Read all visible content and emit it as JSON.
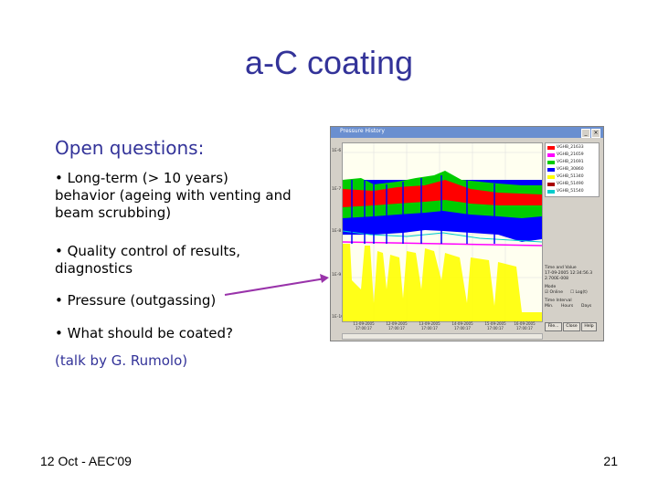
{
  "slide": {
    "title": "a-C coating",
    "heading": "Open questions:",
    "bullets": [
      "• Long-term (> 10 years) behavior (ageing with venting and beam scrubbing)",
      "• Quality control of results, diagnostics",
      "• Pressure (outgassing)",
      "• What should be coated?"
    ],
    "talk": "(talk by G. Rumolo)",
    "footer_left": "12 Oct - AEC'09",
    "footer_right": "21"
  },
  "screenshot": {
    "window_title": "Pressure History",
    "legend": [
      {
        "label": "VGHB_21633",
        "color": "#ff0000"
      },
      {
        "label": "VGHB_21659",
        "color": "#ff00ff"
      },
      {
        "label": "VGHB_21691",
        "color": "#00cc00"
      },
      {
        "label": "VGHB_30860",
        "color": "#0000ff"
      },
      {
        "label": "VGHB_51340",
        "color": "#ffff00"
      },
      {
        "label": "VGHB_51490",
        "color": "#aa0000"
      },
      {
        "label": "VGHB_51540",
        "color": "#00cccc"
      }
    ],
    "y_ticks": [
      "1E-6",
      "1E-7",
      "1E-8",
      "1E-9",
      "1E-10"
    ],
    "x_ticks": [
      "11-09-2005 17:00:17",
      "12-09-2005 17:00:17",
      "13-09-2005 17:00:17",
      "14-09-2005 17:00:17",
      "15-09-2005 17:00:17",
      "16-09-2005 17:00:17"
    ],
    "panel": {
      "time_value": "Time and Value",
      "time_readout": "17-09-2005 12:34:56.3",
      "value_readout": "2.700E-008",
      "mode": "Mode",
      "online": "Online",
      "log": "Log(t)",
      "time_interval": "Time Interval",
      "min": "Min.",
      "hours": "Hours",
      "days": "Days",
      "file": "File...",
      "close": "Close",
      "help": "Help"
    }
  }
}
